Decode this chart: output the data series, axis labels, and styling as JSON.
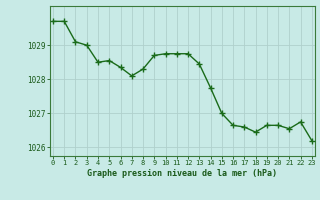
{
  "x": [
    0,
    1,
    2,
    3,
    4,
    5,
    6,
    7,
    8,
    9,
    10,
    11,
    12,
    13,
    14,
    15,
    16,
    17,
    18,
    19,
    20,
    21,
    22,
    23
  ],
  "y": [
    1029.7,
    1029.7,
    1029.1,
    1029.0,
    1028.5,
    1028.55,
    1028.35,
    1028.1,
    1028.3,
    1028.7,
    1028.75,
    1028.75,
    1028.75,
    1028.45,
    1027.75,
    1027.0,
    1026.65,
    1026.6,
    1026.45,
    1026.65,
    1026.65,
    1026.55,
    1026.75,
    1026.2
  ],
  "line_color": "#1a6b1a",
  "marker": "+",
  "marker_color": "#1a6b1a",
  "bg_color": "#c8eae6",
  "grid_color": "#b0d0cc",
  "axis_color": "#3a7a3a",
  "tick_color": "#1a5a1a",
  "xlabel": "Graphe pression niveau de la mer (hPa)",
  "xlabel_color": "#1a5a1a",
  "ylim": [
    1025.75,
    1030.15
  ],
  "yticks": [
    1026,
    1027,
    1028,
    1029
  ],
  "xticks": [
    0,
    1,
    2,
    3,
    4,
    5,
    6,
    7,
    8,
    9,
    10,
    11,
    12,
    13,
    14,
    15,
    16,
    17,
    18,
    19,
    20,
    21,
    22,
    23
  ],
  "xlim": [
    -0.3,
    23.3
  ],
  "line_width": 1.0,
  "marker_size": 4
}
